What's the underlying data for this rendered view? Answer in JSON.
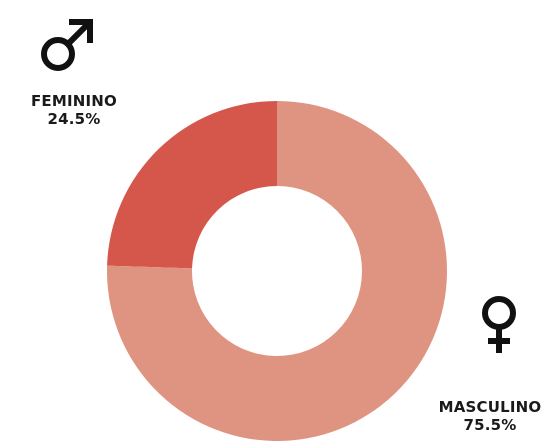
{
  "chart_data": {
    "type": "pie",
    "variant": "donut",
    "categories": [
      "FEMININO",
      "MASCULINO"
    ],
    "values": [
      24.5,
      75.5
    ],
    "value_labels": [
      "24.5%",
      "75.5%"
    ],
    "colors": [
      "#d5564a",
      "#df9381"
    ],
    "icons": [
      "male-symbol-icon",
      "female-symbol-icon"
    ],
    "title": "",
    "legend": "none"
  },
  "labels": {
    "feminino_name": "FEMININO",
    "feminino_value": "24.5%",
    "masculino_name": "MASCULINO",
    "masculino_value": "75.5%"
  }
}
